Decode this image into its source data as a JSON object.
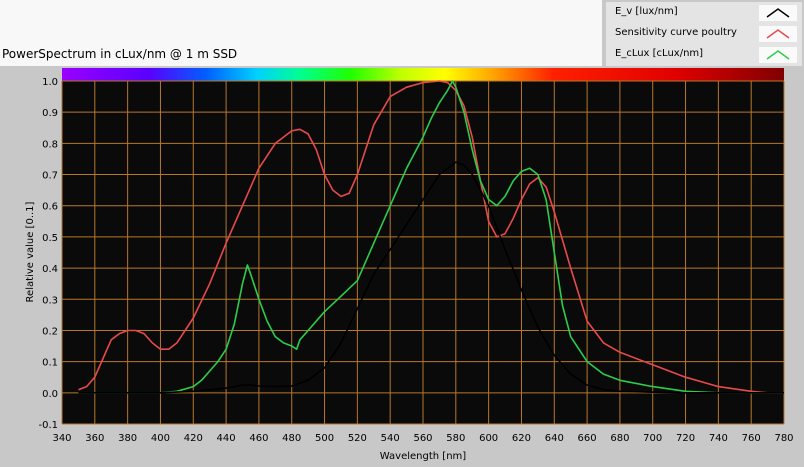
{
  "chart_data": {
    "type": "line",
    "title": "PowerSpectrum in cLux/nm @ 1 m SSD",
    "xlabel": "Wavelength [nm]",
    "ylabel": "Relative value [0..1]",
    "xlim": [
      340,
      780
    ],
    "ylim": [
      -0.1,
      1.0
    ],
    "xticks": [
      "340",
      "360",
      "380",
      "400",
      "420",
      "440",
      "460",
      "480",
      "500",
      "520",
      "540",
      "560",
      "580",
      "600",
      "620",
      "640",
      "660",
      "680",
      "700",
      "720",
      "740",
      "760",
      "780"
    ],
    "yticks": [
      "-0.1",
      "0.0",
      "0.1",
      "0.2",
      "0.3",
      "0.4",
      "0.5",
      "0.6",
      "0.7",
      "0.8",
      "0.9",
      "1.0"
    ],
    "grid": true,
    "legend_position": "top-right",
    "spectrum_bar": true,
    "series": [
      {
        "name": "E_v [lux/nm]",
        "color": "#000000",
        "x": [
          350,
          360,
          380,
          400,
          420,
          440,
          445,
          450,
          455,
          460,
          470,
          480,
          490,
          500,
          510,
          520,
          530,
          540,
          550,
          560,
          565,
          570,
          575,
          580,
          585,
          590,
          600,
          610,
          620,
          630,
          640,
          650,
          660,
          670,
          680,
          700,
          720,
          740,
          760,
          780
        ],
        "y": [
          0.0,
          0.0,
          0.0,
          0.0,
          0.005,
          0.015,
          0.02,
          0.025,
          0.025,
          0.022,
          0.02,
          0.022,
          0.04,
          0.08,
          0.16,
          0.27,
          0.38,
          0.46,
          0.54,
          0.62,
          0.66,
          0.7,
          0.72,
          0.74,
          0.73,
          0.7,
          0.6,
          0.46,
          0.33,
          0.21,
          0.12,
          0.06,
          0.025,
          0.01,
          0.005,
          0.002,
          0.0,
          0.0,
          0.0,
          0.0
        ]
      },
      {
        "name": "Sensitivity curve poultry",
        "color": "#e84a4a",
        "x": [
          350,
          355,
          360,
          365,
          370,
          375,
          380,
          385,
          390,
          395,
          400,
          405,
          410,
          420,
          430,
          440,
          450,
          460,
          470,
          480,
          485,
          490,
          495,
          500,
          505,
          510,
          515,
          520,
          530,
          540,
          550,
          560,
          570,
          575,
          580,
          585,
          590,
          595,
          600,
          605,
          610,
          615,
          620,
          625,
          630,
          635,
          640,
          650,
          660,
          670,
          680,
          700,
          720,
          740,
          760,
          770,
          780
        ],
        "y": [
          0.01,
          0.02,
          0.05,
          0.11,
          0.17,
          0.19,
          0.2,
          0.2,
          0.19,
          0.16,
          0.14,
          0.14,
          0.16,
          0.24,
          0.35,
          0.48,
          0.6,
          0.72,
          0.8,
          0.84,
          0.845,
          0.83,
          0.78,
          0.7,
          0.65,
          0.63,
          0.64,
          0.7,
          0.86,
          0.95,
          0.98,
          0.995,
          1.0,
          0.995,
          0.97,
          0.92,
          0.82,
          0.68,
          0.55,
          0.5,
          0.51,
          0.56,
          0.62,
          0.67,
          0.69,
          0.66,
          0.58,
          0.4,
          0.23,
          0.16,
          0.13,
          0.09,
          0.05,
          0.02,
          0.005,
          0.0,
          0.0
        ]
      },
      {
        "name": "E_cLux [cLux/nm]",
        "color": "#2ccd4a",
        "x": [
          350,
          360,
          380,
          400,
          410,
          420,
          425,
          430,
          435,
          440,
          445,
          450,
          453,
          455,
          460,
          465,
          470,
          475,
          480,
          483,
          485,
          490,
          500,
          510,
          520,
          530,
          540,
          550,
          560,
          565,
          570,
          575,
          578,
          580,
          585,
          590,
          595,
          600,
          605,
          610,
          615,
          620,
          625,
          630,
          635,
          640,
          645,
          650,
          660,
          670,
          680,
          700,
          720,
          740,
          760,
          780
        ],
        "y": [
          0.0,
          0.0,
          0.0,
          0.0,
          0.005,
          0.02,
          0.04,
          0.07,
          0.1,
          0.14,
          0.22,
          0.35,
          0.41,
          0.38,
          0.3,
          0.23,
          0.18,
          0.16,
          0.15,
          0.14,
          0.17,
          0.2,
          0.26,
          0.31,
          0.36,
          0.48,
          0.6,
          0.72,
          0.82,
          0.88,
          0.93,
          0.97,
          1.0,
          0.98,
          0.9,
          0.78,
          0.68,
          0.62,
          0.6,
          0.63,
          0.68,
          0.71,
          0.72,
          0.7,
          0.62,
          0.45,
          0.28,
          0.18,
          0.1,
          0.06,
          0.04,
          0.02,
          0.005,
          0.0,
          0.0,
          0.0
        ]
      }
    ]
  },
  "legend": [
    {
      "label": "E_v [lux/nm]",
      "color": "#000000"
    },
    {
      "label": "Sensitivity curve poultry",
      "color": "#e84a4a"
    },
    {
      "label": "E_cLux [cLux/nm]",
      "color": "#2ccd4a"
    }
  ],
  "colors": {
    "plot_background": "#0a0a0a",
    "grid": "#b8782c",
    "frame": "#c8c8c8"
  }
}
